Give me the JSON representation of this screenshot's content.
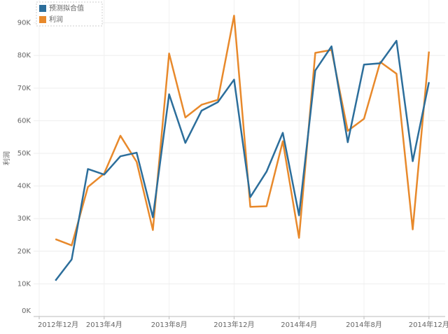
{
  "chart_data": {
    "type": "line",
    "y_label": "利润",
    "categories": [
      "2012年12月",
      null,
      null,
      null,
      "2013年4月",
      null,
      null,
      null,
      "2013年8月",
      null,
      null,
      null,
      "2013年12月",
      null,
      null,
      null,
      "2014年4月",
      null,
      null,
      null,
      "2014年8月",
      null,
      null,
      null,
      "2014年12月"
    ],
    "series": [
      {
        "name": "预测拟合值",
        "color": "#2c6e9b",
        "values": [
          null,
          11000,
          17500,
          45200,
          43500,
          49100,
          50200,
          30400,
          68100,
          53200,
          63100,
          65700,
          72600,
          36600,
          44400,
          56300,
          31000,
          75400,
          82800,
          53400,
          77200,
          77600,
          84500,
          47600,
          71800
        ]
      },
      {
        "name": "利润",
        "color": "#e8892b",
        "values": [
          null,
          23700,
          21800,
          39700,
          43800,
          55400,
          47400,
          26500,
          80600,
          61000,
          64900,
          66400,
          92200,
          33600,
          33800,
          53700,
          24100,
          80800,
          81700,
          56900,
          60600,
          78000,
          74400,
          26700,
          81200
        ]
      }
    ],
    "ylim": [
      0,
      97000
    ],
    "yticks": [
      {
        "value": 0,
        "label": "0K"
      },
      {
        "value": 10000,
        "label": "10K"
      },
      {
        "value": 20000,
        "label": "20K"
      },
      {
        "value": 30000,
        "label": "30K"
      },
      {
        "value": 40000,
        "label": "40K"
      },
      {
        "value": 50000,
        "label": "50K"
      },
      {
        "value": 60000,
        "label": "60K"
      },
      {
        "value": 70000,
        "label": "70K"
      },
      {
        "value": 80000,
        "label": "80K"
      },
      {
        "value": 90000,
        "label": "90K"
      }
    ],
    "grid": true,
    "legend": "top-left"
  }
}
